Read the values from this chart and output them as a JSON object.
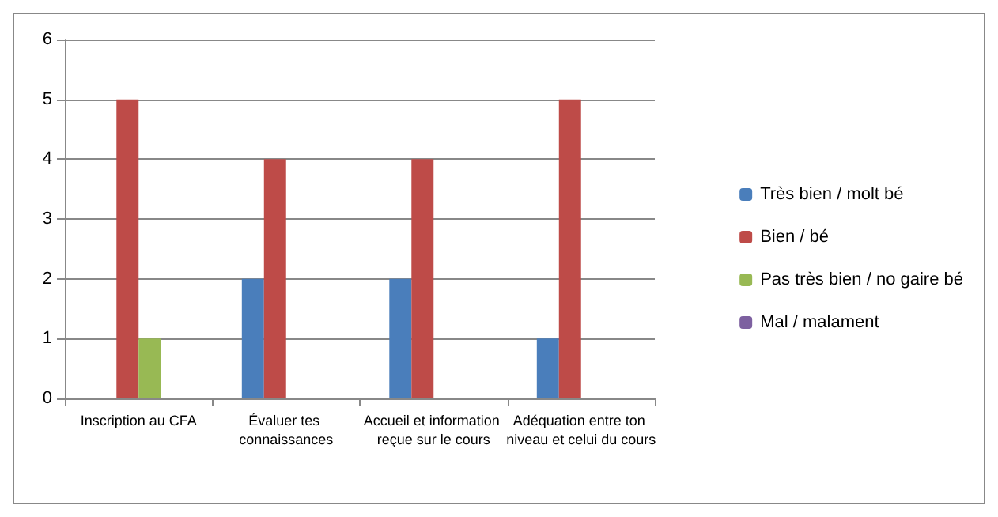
{
  "chart_data": {
    "type": "bar",
    "categories": [
      "Inscription au CFA",
      "Évaluer tes connaissances",
      "Accueil et information reçue sur le cours",
      "Adéquation entre ton niveau et celui du cours"
    ],
    "series": [
      {
        "name": "Très bien / molt bé",
        "color": "#4a7ebb",
        "values": [
          0,
          2,
          2,
          1
        ]
      },
      {
        "name": "Bien / bé",
        "color": "#be4b48",
        "values": [
          5,
          4,
          4,
          5
        ]
      },
      {
        "name": "Pas très bien / no gaire bé",
        "color": "#98b954",
        "values": [
          1,
          0,
          0,
          0
        ]
      },
      {
        "name": "Mal / malament",
        "color": "#7d60a0",
        "values": [
          0,
          0,
          0,
          0
        ]
      }
    ],
    "ylim": [
      0,
      6
    ],
    "yticks": [
      0,
      1,
      2,
      3,
      4,
      5,
      6
    ],
    "grid": "y",
    "legend": "right"
  }
}
